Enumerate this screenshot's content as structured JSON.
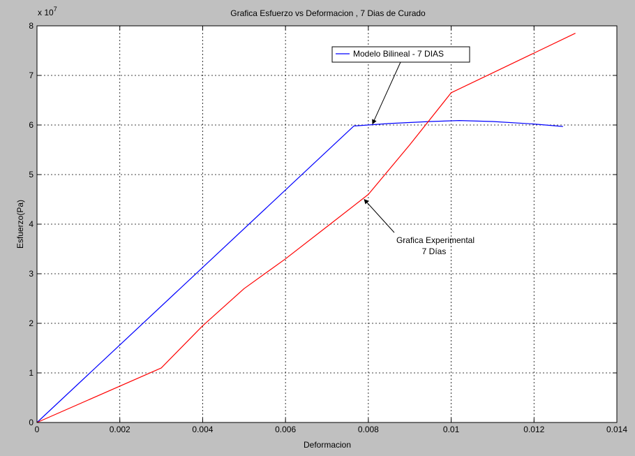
{
  "chart_data": {
    "type": "line",
    "title": "Grafica Esfuerzo vs Deformacion , 7 Dias de Curado",
    "xlabel": "Deformacion",
    "ylabel": "Esfuerzo(Pa)",
    "y_exponent_base": "x 10",
    "y_exponent_power": "7",
    "xlim": [
      0,
      0.014
    ],
    "ylim": [
      0,
      8
    ],
    "x_ticks": [
      0,
      0.002,
      0.004,
      0.006,
      0.008,
      0.01,
      0.012,
      0.014
    ],
    "x_tick_labels": [
      "0",
      "0.002",
      "0.004",
      "0.006",
      "0.008",
      "0.01",
      "0.012",
      "0.014"
    ],
    "y_ticks": [
      0,
      1,
      2,
      3,
      4,
      5,
      6,
      7,
      8
    ],
    "y_tick_labels": [
      "0",
      "1",
      "2",
      "3",
      "4",
      "5",
      "6",
      "7",
      "8"
    ],
    "grid": true,
    "legend_position": "top-center",
    "legend": [
      {
        "label": "Modelo Bilineal - 7 DIAS",
        "color": "#0000ff"
      }
    ],
    "series": [
      {
        "color": "#0000ff",
        "x": [
          0,
          0.00765,
          0.0085,
          0.0095,
          0.0102,
          0.011,
          0.012,
          0.0127
        ],
        "y": [
          0,
          5.98,
          6.03,
          6.07,
          6.09,
          6.07,
          6.02,
          5.97
        ]
      },
      {
        "color": "#ff0000",
        "x": [
          0,
          0.003,
          0.004,
          0.005,
          0.006,
          0.007,
          0.008,
          0.009,
          0.01,
          0.011,
          0.012,
          0.013
        ],
        "y": [
          0,
          1.1,
          1.95,
          2.7,
          3.3,
          3.95,
          4.6,
          5.6,
          6.65,
          7.05,
          7.45,
          7.85
        ]
      }
    ],
    "annotations": [
      {
        "lines": [
          "Grafica Experimental",
          "7 Días"
        ],
        "arrow_to": [
          0.0079,
          4.5
        ]
      }
    ],
    "legend_arrow_to": [
      0.0081,
      6.02
    ]
  }
}
